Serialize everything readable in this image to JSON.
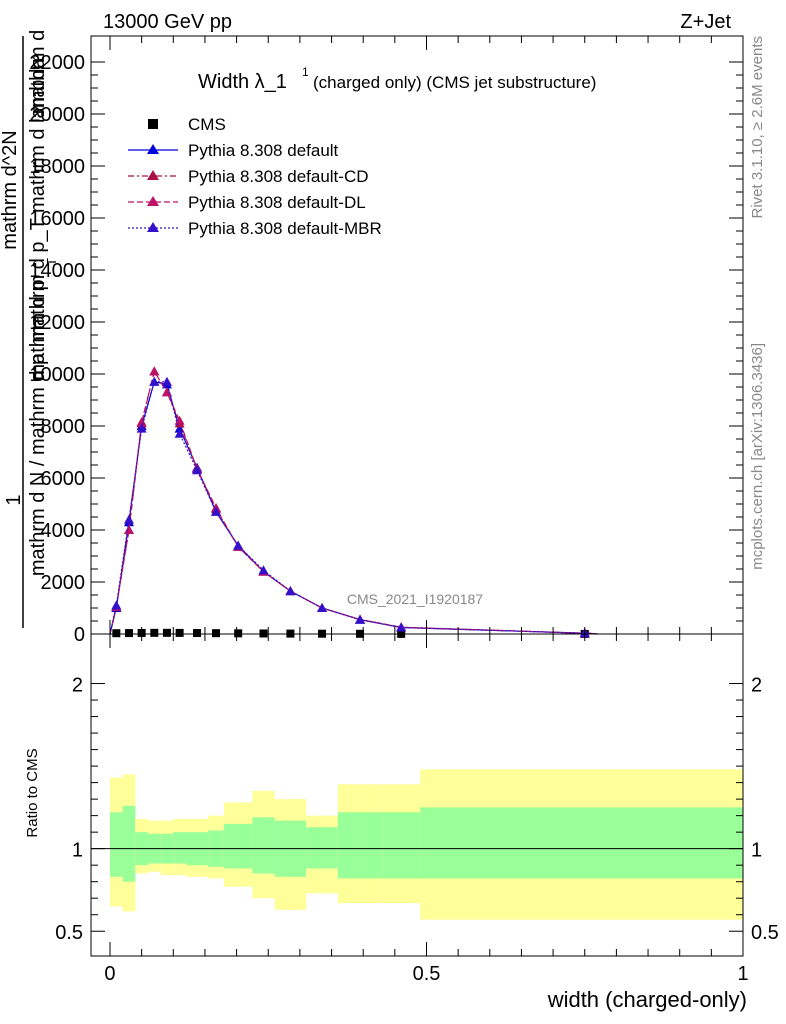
{
  "header": {
    "energy_label": "13000 GeV pp",
    "process_label": "Z+Jet",
    "plot_title_main": "Width λ_1",
    "plot_title_sup": "1",
    "plot_title_rest": "(charged only) (CMS jet substructure)",
    "analysis_id": "CMS_2021_I1920187",
    "side_rivet": "Rivet 3.1.10, ≥ 2.6M events",
    "side_mcplots": "mcplots.cern.ch [arXiv:1306.3436]"
  },
  "chart_data": [
    {
      "type": "line",
      "panel": "main",
      "ylabel_numerator": "1",
      "ylabel_lines": [
        "mathrm d N / mathrm d p",
        "mathrm d p",
        "mathrm d",
        "mathrm d^2N",
        "mathrm d p_T mathrm d lambda",
        "T"
      ],
      "ylim": [
        0,
        23000
      ],
      "xlim": [
        -0.03,
        1.0
      ],
      "y_ticks": [
        {
          "value": 0,
          "label": "0"
        },
        {
          "value": 2000,
          "label": "2000"
        },
        {
          "value": 4000,
          "label": "4000"
        },
        {
          "value": 6000,
          "label": "6000"
        },
        {
          "value": 8000,
          "label": "8000"
        },
        {
          "value": 10000,
          "label": "10000"
        },
        {
          "value": 12000,
          "label": "12000"
        },
        {
          "value": 14000,
          "label": "14000"
        },
        {
          "value": 16000,
          "label": "16000"
        },
        {
          "value": 18000,
          "label": "18000"
        },
        {
          "value": 20000,
          "label": "20000"
        },
        {
          "value": 22000,
          "label": "22000"
        }
      ],
      "x": [
        0.01,
        0.03,
        0.05,
        0.07,
        0.09,
        0.11,
        0.1375,
        0.1675,
        0.2025,
        0.2425,
        0.285,
        0.335,
        0.395,
        0.46,
        0.75
      ],
      "series": [
        {
          "name": "CMS",
          "color": "#000000",
          "marker": "square",
          "values": [
            30,
            35,
            40,
            45,
            45,
            42,
            38,
            32,
            26,
            20,
            15,
            11,
            8,
            5,
            2
          ]
        },
        {
          "name": "Pythia 8.308 default",
          "color": "#0000dd",
          "marker": "triangle",
          "dash": "solid",
          "values": [
            1000,
            4300,
            8000,
            9700,
            9600,
            7900,
            6400,
            4700,
            3400,
            2400,
            1650,
            1000,
            550,
            250,
            30
          ]
        },
        {
          "name": "Pythia 8.308 default-CD",
          "color": "#aa1144",
          "marker": "triangle",
          "dash": "dashdot",
          "values": [
            1050,
            4000,
            8150,
            10100,
            9300,
            8100,
            6350,
            4800,
            3350,
            2400,
            1650,
            1000,
            560,
            260,
            30
          ]
        },
        {
          "name": "Pythia 8.308 default-DL",
          "color": "#bb1166",
          "marker": "triangle",
          "dash": "dash",
          "values": [
            1050,
            4000,
            8100,
            10100,
            9300,
            8200,
            6350,
            4850,
            3350,
            2400,
            1650,
            1000,
            560,
            260,
            30
          ]
        },
        {
          "name": "Pythia 8.308 default-MBR",
          "color": "#3311cc",
          "marker": "triangle",
          "dash": "dot",
          "values": [
            1100,
            4400,
            7900,
            9700,
            9700,
            7700,
            6300,
            4700,
            3400,
            2450,
            1650,
            1000,
            550,
            250,
            30
          ]
        }
      ]
    },
    {
      "type": "area",
      "panel": "ratio",
      "ylabel": "Ratio to CMS",
      "xlabel": "width (charged-only)",
      "ylim": [
        0.35,
        2.3
      ],
      "xlim": [
        -0.03,
        1.0
      ],
      "y_ticks": [
        {
          "value": 0.5,
          "label": "0.5"
        },
        {
          "value": 1,
          "label": "1"
        },
        {
          "value": 2,
          "label": "2"
        }
      ],
      "x_ticks": [
        {
          "value": 0,
          "label": "0"
        },
        {
          "value": 0.5,
          "label": "0.5"
        },
        {
          "value": 1,
          "label": "1"
        }
      ],
      "reference_line": 1,
      "bin_edges": [
        0.0,
        0.02,
        0.04,
        0.06,
        0.08,
        0.1,
        0.12,
        0.155,
        0.18,
        0.225,
        0.26,
        0.31,
        0.36,
        0.43,
        0.49,
        1.0
      ],
      "band_outer": {
        "color": "#ffff99",
        "low": [
          0.65,
          0.62,
          0.85,
          0.86,
          0.84,
          0.84,
          0.83,
          0.82,
          0.77,
          0.7,
          0.63,
          0.73,
          0.67,
          0.67,
          0.57
        ],
        "high": [
          1.43,
          1.45,
          1.18,
          1.17,
          1.17,
          1.18,
          1.18,
          1.2,
          1.28,
          1.35,
          1.3,
          1.2,
          1.39,
          1.39,
          1.48
        ]
      },
      "band_inner": {
        "color": "#99ff99",
        "low": [
          0.83,
          0.8,
          0.9,
          0.91,
          0.91,
          0.91,
          0.9,
          0.89,
          0.88,
          0.85,
          0.83,
          0.88,
          0.82,
          0.82,
          0.82
        ]
      },
      "band_inner_high": [
        1.22,
        1.26,
        1.1,
        1.09,
        1.09,
        1.1,
        1.1,
        1.11,
        1.15,
        1.19,
        1.17,
        1.13,
        1.22,
        1.22,
        1.25
      ]
    }
  ]
}
